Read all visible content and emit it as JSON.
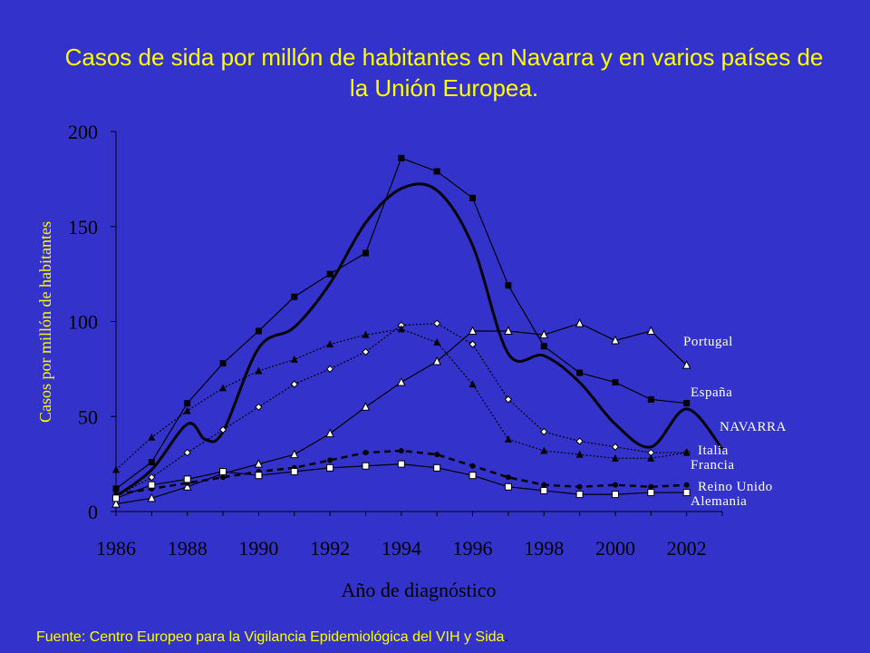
{
  "title": "Casos de sida por millón de habitantes en Navarra y en varios países de la Unión Europea.",
  "footer": {
    "source": "Fuente: Centro Europeo para la Vigilancia Epidemiológica del VIH y Sida",
    "end": "."
  },
  "colors": {
    "background": "#3333cc",
    "title": "#ffff00",
    "ylabel": "#ffff00",
    "axis": "#000000",
    "series": "#000000",
    "series_labels": "#ffffff"
  },
  "chart_data": {
    "type": "line",
    "xlabel": "Año de diagnóstico",
    "ylabel": "Casos por millón de habitantes",
    "xlim": [
      1986,
      2003
    ],
    "ylim": [
      0,
      200
    ],
    "xticks": [
      1986,
      1988,
      1990,
      1992,
      1994,
      1996,
      1998,
      2000,
      2002
    ],
    "yticks": [
      0,
      50,
      100,
      150,
      200
    ],
    "series": [
      {
        "name": "Portugal",
        "marker": "triangle-open",
        "line": "solid",
        "x": [
          1986,
          1987,
          1988,
          1989,
          1990,
          1991,
          1992,
          1993,
          1994,
          1995,
          1996,
          1997,
          1998,
          1999,
          2000,
          2001,
          2002
        ],
        "values": [
          4,
          7,
          13,
          20,
          25,
          30,
          41,
          55,
          68,
          79,
          95,
          95,
          93,
          99,
          90,
          95,
          77
        ]
      },
      {
        "name": "España",
        "marker": "square-filled",
        "line": "solid",
        "x": [
          1986,
          1987,
          1988,
          1989,
          1990,
          1991,
          1992,
          1993,
          1994,
          1995,
          1996,
          1997,
          1998,
          1999,
          2000,
          2001,
          2002
        ],
        "values": [
          12,
          26,
          57,
          78,
          95,
          113,
          125,
          136,
          186,
          179,
          165,
          119,
          87,
          73,
          68,
          59,
          57
        ]
      },
      {
        "name": "NAVARRA",
        "marker": "none",
        "line": "bold-smooth",
        "x": [
          1986,
          1987,
          1988,
          1988.5,
          1989,
          1990,
          1991,
          1992,
          1993,
          1994,
          1995,
          1996,
          1997,
          1998,
          1999,
          2000,
          2001,
          2002,
          2003
        ],
        "values": [
          8,
          22,
          46,
          38,
          42,
          86,
          97,
          120,
          152,
          170,
          169,
          140,
          83,
          82,
          68,
          46,
          34,
          54,
          33
        ]
      },
      {
        "name": "Italia",
        "marker": "diamond-open",
        "line": "dotted",
        "x": [
          1986,
          1987,
          1988,
          1989,
          1990,
          1991,
          1992,
          1993,
          1994,
          1995,
          1996,
          1997,
          1998,
          1999,
          2000,
          2001,
          2002
        ],
        "values": [
          8,
          18,
          31,
          43,
          55,
          67,
          75,
          84,
          98,
          99,
          88,
          59,
          42,
          37,
          34,
          31,
          31
        ]
      },
      {
        "name": "Francia",
        "marker": "triangle-filled",
        "line": "dotted",
        "x": [
          1986,
          1987,
          1988,
          1989,
          1990,
          1991,
          1992,
          1993,
          1994,
          1995,
          1996,
          1997,
          1998,
          1999,
          2000,
          2001,
          2002
        ],
        "values": [
          22,
          39,
          53,
          65,
          74,
          80,
          88,
          93,
          96,
          89,
          67,
          38,
          32,
          30,
          28,
          28,
          31
        ]
      },
      {
        "name": "Reino Unido",
        "marker": "circle-filled",
        "line": "dashed",
        "x": [
          1986,
          1987,
          1988,
          1989,
          1990,
          1991,
          1992,
          1993,
          1994,
          1995,
          1996,
          1997,
          1998,
          1999,
          2000,
          2001,
          2002
        ],
        "values": [
          9,
          12,
          15,
          18,
          21,
          23,
          27,
          31,
          32,
          30,
          24,
          18,
          14,
          13,
          14,
          13,
          14
        ]
      },
      {
        "name": "Alemania",
        "marker": "square-open",
        "line": "solid",
        "x": [
          1986,
          1987,
          1988,
          1989,
          1990,
          1991,
          1992,
          1993,
          1994,
          1995,
          1996,
          1997,
          1998,
          1999,
          2000,
          2001,
          2002
        ],
        "values": [
          7,
          14,
          17,
          21,
          19,
          21,
          23,
          24,
          25,
          23,
          19,
          13,
          11,
          9,
          9,
          10,
          10
        ]
      }
    ],
    "grid": false,
    "legend": "inline labels at right end of lines"
  }
}
